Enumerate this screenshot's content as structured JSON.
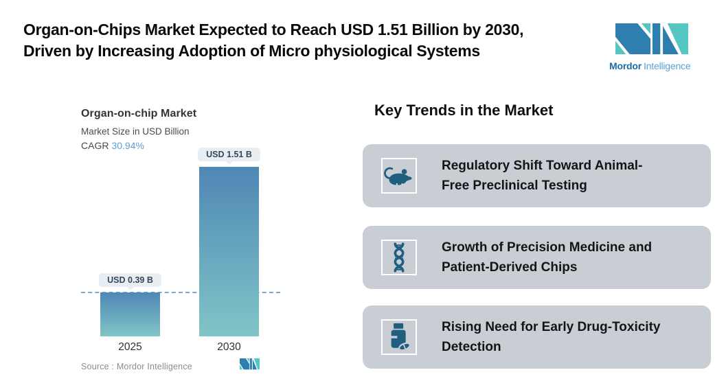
{
  "header": {
    "title_lines": [
      "Organ-on-Chips Market Expected to Reach USD 1.51 Billion by 2030,",
      "Driven by Increasing Adoption of Micro physiological Systems"
    ]
  },
  "brand": {
    "name_bold": "Mordor",
    "name_regular": "Intelligence",
    "logo_colors": {
      "blue": "#2e7eb0",
      "teal": "#56c6c3"
    }
  },
  "chart": {
    "title": "Organ-on-chip Market",
    "subtitle": "Market Size in USD Billion",
    "cagr_label": "CAGR",
    "cagr_value": "30.94%",
    "source": "Source :  Mordor Intelligence"
  },
  "chart_data": {
    "type": "bar",
    "categories": [
      "2025",
      "2030"
    ],
    "values": [
      0.39,
      1.51
    ],
    "bar_labels": [
      "USD 0.39 B",
      "USD 1.51 B"
    ],
    "title": "Organ-on-chip Market",
    "subtitle": "Market Size in USD Billion",
    "cagr": "30.94%",
    "ylim": [
      0,
      1.6
    ],
    "reference_line_value": 0.39,
    "bar_gradient_top": "#4f87b5",
    "bar_gradient_bottom": "#80c5c7",
    "dashed_line_color": "#7aa6d6",
    "legend": "none",
    "grid": "off"
  },
  "trends": {
    "heading": "Key Trends in the Market",
    "icon_color": "#1e5f80",
    "card_bg": "#c9cdd4",
    "cards": [
      {
        "icon": "mouse-icon",
        "lines": [
          "Regulatory Shift Toward Animal-",
          "Free Preclinical Testing"
        ]
      },
      {
        "icon": "dna-icon",
        "lines": [
          "Growth of Precision Medicine and",
          "Patient-Derived Chips"
        ]
      },
      {
        "icon": "pill-bottle-icon",
        "lines": [
          "Rising Need for Early Drug-Toxicity",
          "Detection"
        ]
      }
    ]
  }
}
